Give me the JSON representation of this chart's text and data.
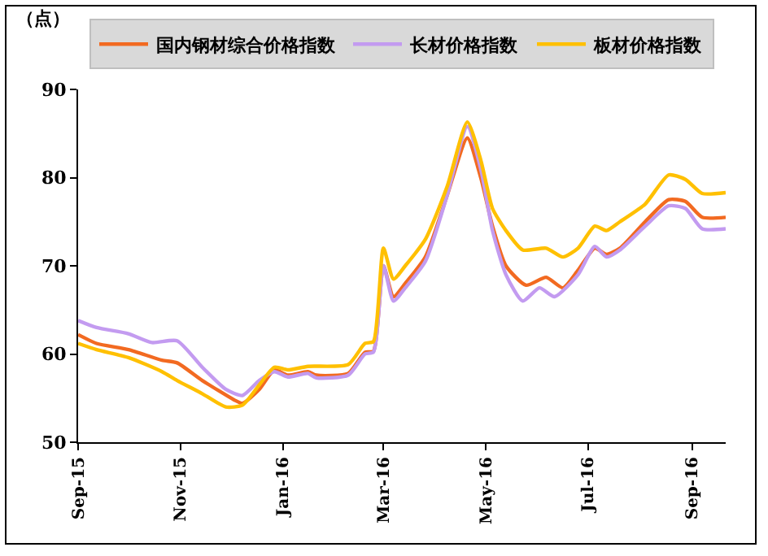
{
  "chart_data": {
    "type": "line",
    "ylabel": "（点）",
    "xlim": [
      "2015-09-01",
      "2016-09-21"
    ],
    "xticks": [
      {
        "value": "2015-09-01",
        "label": "Sep-15"
      },
      {
        "value": "2015-11-01",
        "label": "Nov-15"
      },
      {
        "value": "2016-01-01",
        "label": "Jan-16"
      },
      {
        "value": "2016-03-01",
        "label": "Mar-16"
      },
      {
        "value": "2016-05-01",
        "label": "May-16"
      },
      {
        "value": "2016-07-01",
        "label": "Jul-16"
      },
      {
        "value": "2016-09-01",
        "label": "Sep-16"
      }
    ],
    "ylim": [
      50,
      90
    ],
    "yticks": [
      50,
      60,
      70,
      80,
      90
    ],
    "grid": false,
    "legend": "top",
    "marker": "none",
    "line_style": "solid",
    "series": [
      {
        "name": "国内钢材综合价格指数",
        "color": "#f26a21",
        "x": [
          "2015-09-01",
          "2015-09-12",
          "2015-10-01",
          "2015-10-21",
          "2015-10-30",
          "2015-11-14",
          "2015-12-03",
          "2015-12-08",
          "2015-12-18",
          "2015-12-27",
          "2016-01-04",
          "2016-01-16",
          "2016-01-21",
          "2016-02-09",
          "2016-02-19",
          "2016-02-24",
          "2016-03-01",
          "2016-03-07",
          "2016-03-14",
          "2016-03-26",
          "2016-04-08",
          "2016-04-20",
          "2016-04-28",
          "2016-05-05",
          "2016-05-13",
          "2016-05-25",
          "2016-06-06",
          "2016-06-16",
          "2016-06-25",
          "2016-07-05",
          "2016-07-12",
          "2016-07-20",
          "2016-08-04",
          "2016-08-18",
          "2016-08-28",
          "2016-09-07",
          "2016-09-21"
        ],
        "values": [
          62.2,
          61.2,
          60.5,
          59.3,
          59,
          57,
          54.8,
          54.4,
          56,
          58.2,
          57.6,
          58,
          57.6,
          57.8,
          60.2,
          60.3,
          70,
          66.5,
          68,
          71,
          78,
          84.5,
          80,
          74.5,
          70,
          67.8,
          68.7,
          67.5,
          69.5,
          72,
          71.3,
          72,
          75,
          77.5,
          77.3,
          75.5,
          75.5
        ]
      },
      {
        "name": "长材价格指数",
        "color": "#c39bf0",
        "x": [
          "2015-09-01",
          "2015-09-12",
          "2015-10-01",
          "2015-10-15",
          "2015-10-30",
          "2015-11-14",
          "2015-11-28",
          "2015-12-08",
          "2015-12-18",
          "2015-12-27",
          "2016-01-04",
          "2016-01-16",
          "2016-01-21",
          "2016-02-09",
          "2016-02-19",
          "2016-02-24",
          "2016-03-01",
          "2016-03-07",
          "2016-03-14",
          "2016-03-26",
          "2016-04-08",
          "2016-04-20",
          "2016-04-28",
          "2016-05-05",
          "2016-05-13",
          "2016-05-23",
          "2016-06-02",
          "2016-06-11",
          "2016-06-25",
          "2016-07-05",
          "2016-07-12",
          "2016-07-20",
          "2016-08-04",
          "2016-08-18",
          "2016-08-28",
          "2016-09-07",
          "2016-09-21"
        ],
        "values": [
          63.8,
          63,
          62.3,
          61.3,
          61.5,
          58.5,
          56,
          55.3,
          57,
          58,
          57.4,
          57.8,
          57.3,
          57.6,
          60,
          60.2,
          70,
          66,
          67.5,
          70.5,
          78,
          85.8,
          81,
          74,
          69,
          66,
          67.5,
          66.5,
          69,
          72.2,
          71,
          71.8,
          74.5,
          76.8,
          76.5,
          74.2,
          74.2
        ]
      },
      {
        "name": "板材价格指数",
        "color": "#ffc000",
        "x": [
          "2015-09-01",
          "2015-09-12",
          "2015-10-01",
          "2015-10-21",
          "2015-10-30",
          "2015-11-14",
          "2015-11-28",
          "2015-12-08",
          "2015-12-18",
          "2015-12-27",
          "2016-01-04",
          "2016-01-16",
          "2016-02-09",
          "2016-02-19",
          "2016-02-24",
          "2016-03-01",
          "2016-03-07",
          "2016-03-14",
          "2016-03-26",
          "2016-04-08",
          "2016-04-20",
          "2016-04-28",
          "2016-05-05",
          "2016-05-13",
          "2016-05-23",
          "2016-06-06",
          "2016-06-16",
          "2016-06-25",
          "2016-07-05",
          "2016-07-12",
          "2016-07-20",
          "2016-08-04",
          "2016-08-18",
          "2016-08-28",
          "2016-09-07",
          "2016-09-21"
        ],
        "values": [
          61.2,
          60.5,
          59.6,
          58,
          57,
          55.5,
          54,
          54.2,
          56.5,
          58.5,
          58.2,
          58.6,
          58.8,
          61.2,
          61.4,
          72,
          68.5,
          70,
          73,
          79,
          86.3,
          82,
          76.5,
          74,
          71.8,
          72,
          71,
          72,
          74.5,
          74,
          75,
          77,
          80.3,
          79.8,
          78.2,
          78.3
        ]
      }
    ]
  }
}
